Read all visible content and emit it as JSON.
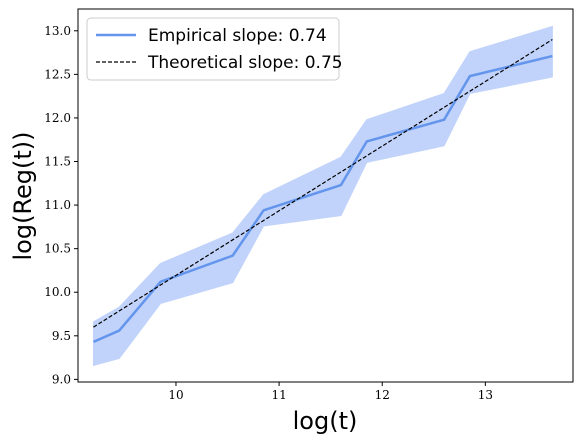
{
  "chart_data": {
    "type": "line",
    "xlabel": "log(t)",
    "ylabel": "log(Reg(t))",
    "xlim": [
      9.05,
      13.85
    ],
    "ylim": [
      8.97,
      13.25
    ],
    "xticks": [
      10,
      11,
      12,
      13
    ],
    "yticks": [
      9.0,
      9.5,
      10.0,
      10.5,
      11.0,
      11.5,
      12.0,
      12.5,
      13.0
    ],
    "ytick_labels": [
      "9.0",
      "9.5",
      "10.0",
      "10.5",
      "11.0",
      "11.5",
      "12.0",
      "12.5",
      "13.0"
    ],
    "grid": false,
    "legend_position": "top-left",
    "series": [
      {
        "name": "Empirical slope: 0.74",
        "style": "solid",
        "color": "#6495ed",
        "band_color": "#c1d3fa",
        "x": [
          9.2,
          9.45,
          9.85,
          10.55,
          10.85,
          11.6,
          11.85,
          12.6,
          12.85,
          13.65
        ],
        "y": [
          9.43,
          9.56,
          10.12,
          10.42,
          10.94,
          11.23,
          11.73,
          11.98,
          12.48,
          12.71
        ],
        "lower": [
          9.16,
          9.24,
          9.87,
          10.11,
          10.76,
          10.88,
          11.49,
          11.68,
          12.28,
          12.47
        ],
        "upper": [
          9.66,
          9.83,
          10.33,
          10.68,
          11.12,
          11.55,
          11.98,
          12.28,
          12.76,
          13.05
        ]
      },
      {
        "name": "Theoretical slope: 0.75",
        "style": "dashed",
        "color": "#000000",
        "x": [
          9.2,
          13.65
        ],
        "y": [
          9.6,
          12.9
        ]
      }
    ]
  }
}
